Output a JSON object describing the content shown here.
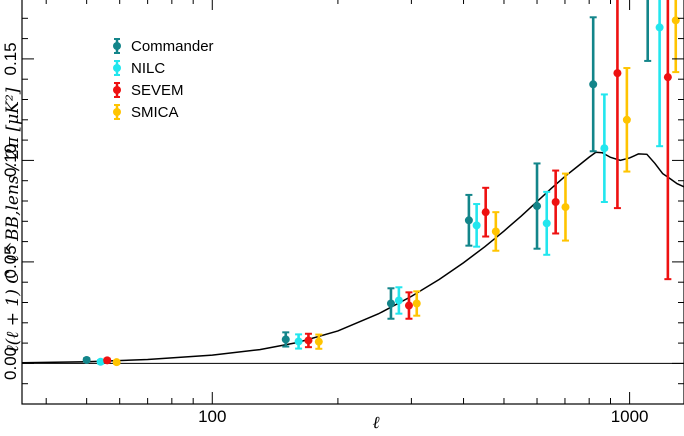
{
  "chart_data": {
    "type": "scatter",
    "title": "",
    "xlabel": "ℓ",
    "ylabel": "ℓ(ℓ + 1)  C_ℓ^BB,lens / 2π   [μK²]",
    "x_scale": "log",
    "xlim": [
      35,
      1350
    ],
    "ylim": [
      -0.02,
      0.18
    ],
    "x_ticks": [
      100,
      1000
    ],
    "y_ticks": [
      0.0,
      0.05,
      0.1,
      0.15
    ],
    "x_tick_labels": [
      "100",
      "1000"
    ],
    "y_tick_labels": [
      "0.00",
      "0.05",
      "0.10",
      "0.15"
    ],
    "legend_position": "top-left",
    "colors": {
      "Commander": "#13858a",
      "NILC": "#22e6ee",
      "SEVEM": "#ee1111",
      "SMICA": "#ffc400",
      "model": "#000000"
    },
    "series": [
      {
        "name": "Commander",
        "points": [
          {
            "x": 50,
            "y": 0.0017,
            "err": 0.0008
          },
          {
            "x": 150,
            "y": 0.0118,
            "err": 0.0035
          },
          {
            "x": 268,
            "y": 0.0295,
            "err": 0.0075
          },
          {
            "x": 412,
            "y": 0.0705,
            "err": 0.0125
          },
          {
            "x": 600,
            "y": 0.0775,
            "err": 0.021
          },
          {
            "x": 818,
            "y": 0.1375,
            "err": 0.033
          },
          {
            "x": 1105,
            "y": 0.1875,
            "err": 0.0385
          }
        ]
      },
      {
        "name": "NILC",
        "points": [
          {
            "x": 54,
            "y": 0.0008,
            "err": 0.0008
          },
          {
            "x": 161,
            "y": 0.0108,
            "err": 0.0035
          },
          {
            "x": 280,
            "y": 0.031,
            "err": 0.0065
          },
          {
            "x": 430,
            "y": 0.068,
            "err": 0.0105
          },
          {
            "x": 633,
            "y": 0.069,
            "err": 0.0155
          },
          {
            "x": 870,
            "y": 0.106,
            "err": 0.0265
          },
          {
            "x": 1180,
            "y": 0.1655,
            "err": 0.0585
          }
        ]
      },
      {
        "name": "SEVEM",
        "points": [
          {
            "x": 56,
            "y": 0.0015,
            "err": 0.0008
          },
          {
            "x": 170,
            "y": 0.0113,
            "err": 0.0033
          },
          {
            "x": 296,
            "y": 0.0285,
            "err": 0.0065
          },
          {
            "x": 452,
            "y": 0.0745,
            "err": 0.012
          },
          {
            "x": 665,
            "y": 0.0795,
            "err": 0.0155
          },
          {
            "x": 935,
            "y": 0.143,
            "err": 0.0665
          },
          {
            "x": 1235,
            "y": 0.141,
            "err": 0.0995
          }
        ]
      },
      {
        "name": "SMICA",
        "points": [
          {
            "x": 59,
            "y": 0.0006,
            "err": 0.0008
          },
          {
            "x": 180,
            "y": 0.0107,
            "err": 0.0035
          },
          {
            "x": 309,
            "y": 0.0295,
            "err": 0.006
          },
          {
            "x": 478,
            "y": 0.065,
            "err": 0.0095
          },
          {
            "x": 702,
            "y": 0.077,
            "err": 0.0165
          },
          {
            "x": 985,
            "y": 0.12,
            "err": 0.0255
          },
          {
            "x": 1290,
            "y": 0.169,
            "err": 0.0255
          }
        ]
      }
    ],
    "model_curve": {
      "name": "",
      "x": [
        35,
        50,
        70,
        100,
        130,
        160,
        200,
        250,
        300,
        350,
        400,
        450,
        500,
        550,
        600,
        650,
        700,
        750,
        800,
        830,
        860,
        900,
        950,
        1000,
        1050,
        1100,
        1150,
        1200,
        1250,
        1300,
        1350
      ],
      "y": [
        0.0003,
        0.0008,
        0.0019,
        0.0041,
        0.0068,
        0.0103,
        0.016,
        0.0244,
        0.033,
        0.0414,
        0.0496,
        0.0575,
        0.0652,
        0.0726,
        0.0797,
        0.0863,
        0.0921,
        0.097,
        0.1016,
        0.104,
        0.1038,
        0.1015,
        0.1,
        0.1012,
        0.1032,
        0.103,
        0.0985,
        0.0935,
        0.091,
        0.0885,
        0.087
      ]
    },
    "zero_line": 0.0
  }
}
